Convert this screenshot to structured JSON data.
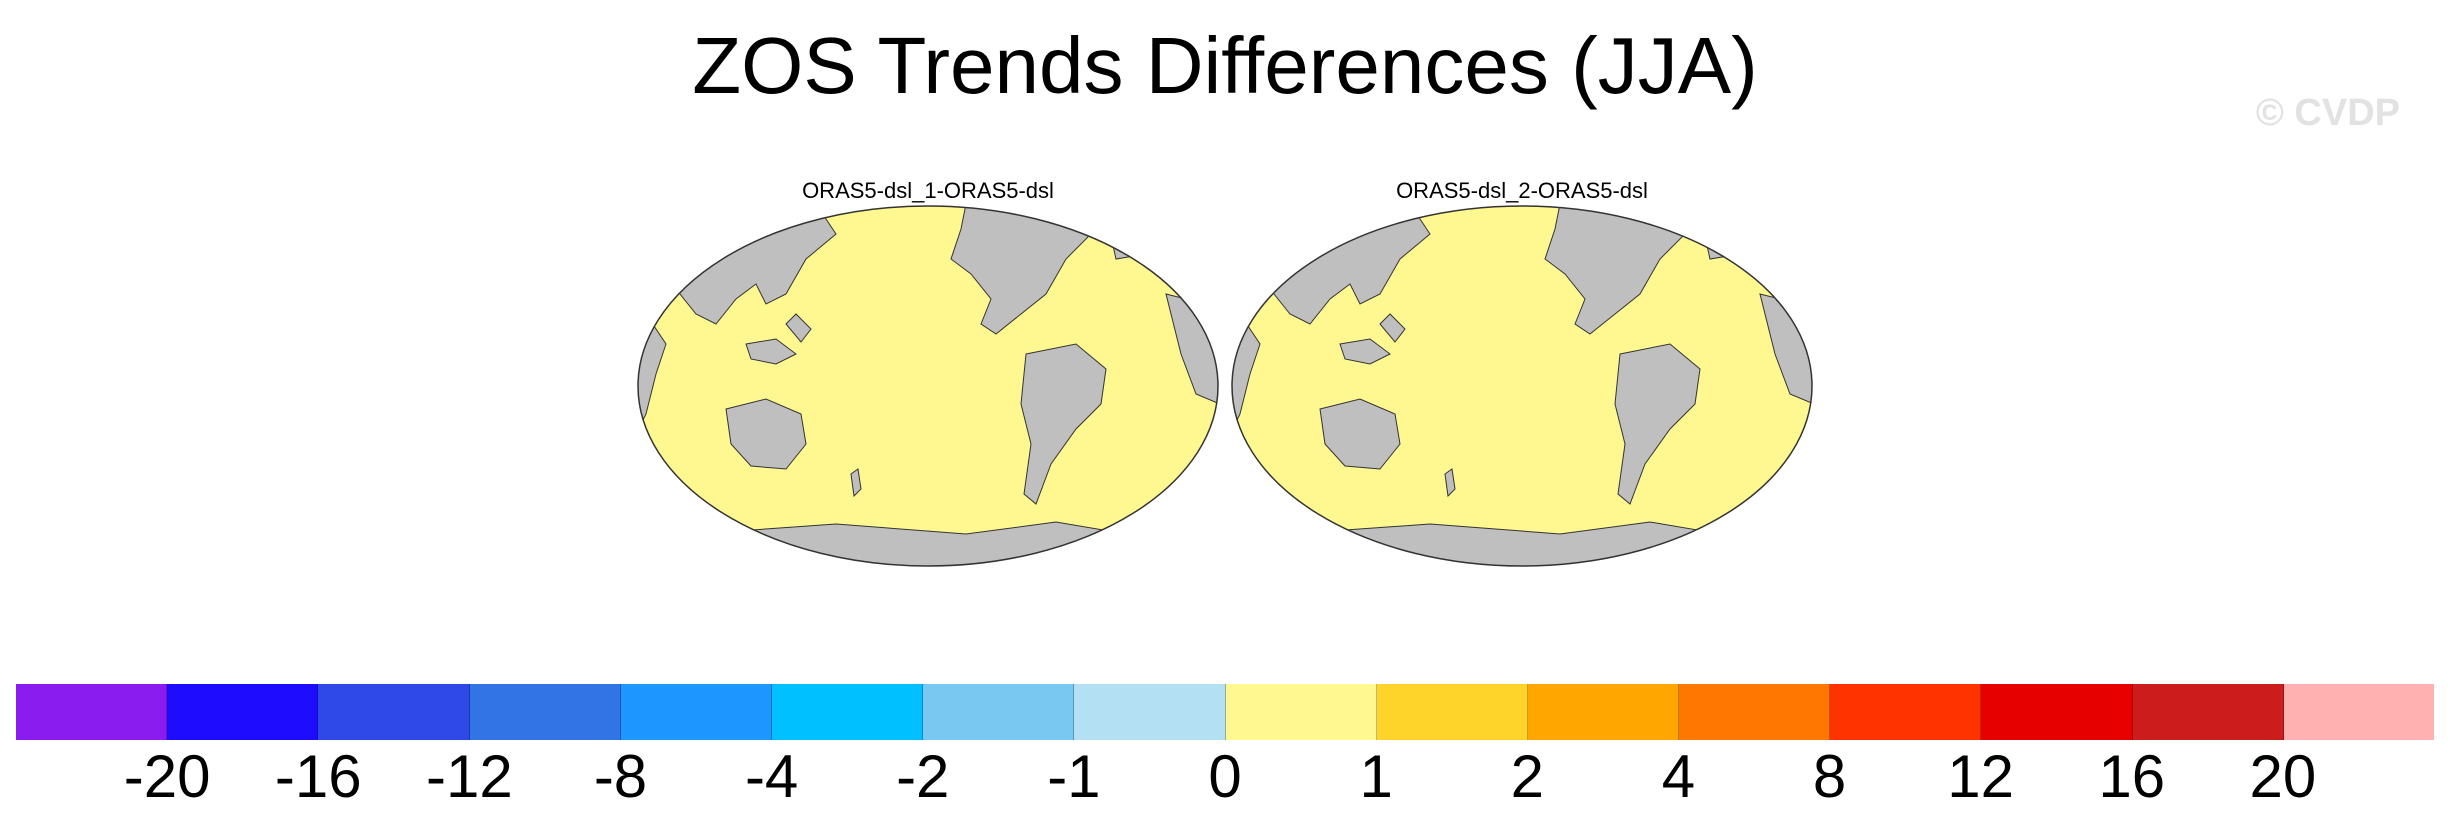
{
  "title": "ZOS Trends Differences (JJA)",
  "watermark": "© CVDP",
  "panels": [
    {
      "title": "ORAS5-dsl_1-ORAS5-dsl",
      "ocean_value_bin": "0 to 1",
      "ocean_color": "#fff78f",
      "land_color": "#bfbfbf"
    },
    {
      "title": "ORAS5-dsl_2-ORAS5-dsl",
      "ocean_value_bin": "0 to 1",
      "ocean_color": "#fff78f",
      "land_color": "#bfbfbf"
    }
  ],
  "colorbar": {
    "colors": [
      "#8a1cf0",
      "#1e0cff",
      "#2f48e8",
      "#3274e6",
      "#1e96ff",
      "#00c0ff",
      "#78c8f2",
      "#b4e0f4",
      "#fff78f",
      "#ffd42a",
      "#ffa600",
      "#ff7700",
      "#ff3300",
      "#e60000",
      "#cc1c1c",
      "#ffb0b0"
    ],
    "labels": [
      "-20",
      "-16",
      "-12",
      "-8",
      "-4",
      "-2",
      "-1",
      "0",
      "1",
      "2",
      "4",
      "8",
      "12",
      "16",
      "20"
    ]
  }
}
